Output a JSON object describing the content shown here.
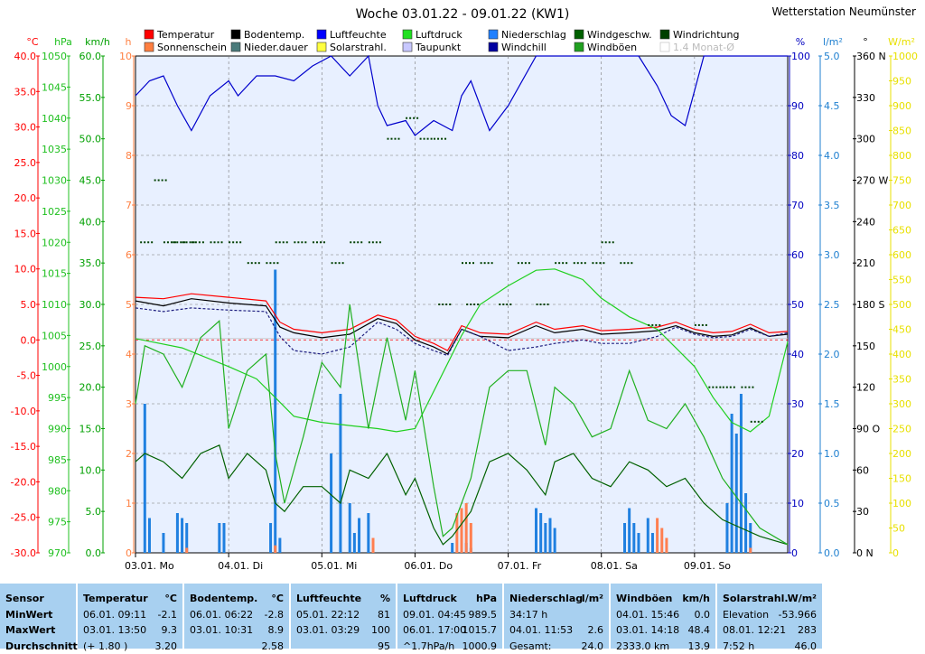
{
  "title": "Woche 03.01.22 - 09.01.22 (KW1)",
  "station": "Wetterstation Neumünster",
  "legend": [
    {
      "label": "Temperatur",
      "color": "#ff0000"
    },
    {
      "label": "Sonnenschein",
      "color": "#ff7f40"
    },
    {
      "label": "Bodentemp.",
      "color": "#000000"
    },
    {
      "label": "Nieder.dauer",
      "color": "#4a7a7a"
    },
    {
      "label": "Luftfeuchte",
      "color": "#0000ff"
    },
    {
      "label": "Solarstrahl.",
      "color": "#ffff40"
    },
    {
      "label": "Luftdruck",
      "color": "#20e020"
    },
    {
      "label": "Taupunkt",
      "color": "#c8c8ff"
    },
    {
      "label": "Niederschlag",
      "color": "#2080ff"
    },
    {
      "label": "Windchill",
      "color": "#0000a0"
    },
    {
      "label": "Windgeschw.",
      "color": "#006000"
    },
    {
      "label": "Windböen",
      "color": "#20a020"
    },
    {
      "label": "Windrichtung",
      "color": "#004000"
    },
    {
      "label": "1.4 Monat-Ø",
      "color": "#ffffff"
    }
  ],
  "axes": {
    "temp": {
      "unit": "°C",
      "min": -30,
      "max": 40,
      "step": 5,
      "color": "#ff0000"
    },
    "pressure": {
      "unit": "hPa",
      "min": 970,
      "max": 1050,
      "step": 5,
      "color": "#20c020"
    },
    "wind": {
      "unit": "km/h",
      "min": 0,
      "max": 60,
      "step": 5,
      "color": "#00a000"
    },
    "hours": {
      "unit": "h",
      "min": 0,
      "max": 10,
      "step": 1,
      "color": "#ff7f40"
    },
    "humidity": {
      "unit": "%",
      "min": 0,
      "max": 100,
      "step": 10,
      "color": "#0000c0"
    },
    "rain": {
      "unit": "l/m²",
      "min": 0,
      "max": 5,
      "step": 0.5,
      "color": "#2080d0"
    },
    "direction": {
      "unit": "°",
      "min": 0,
      "max": 360,
      "step": 30,
      "color": "#000000",
      "compass": {
        "0": "N",
        "90": "O",
        "180": "S",
        "270": "W",
        "360": "N"
      }
    },
    "solar": {
      "unit": "W/m²",
      "min": 0,
      "max": 1000,
      "step": 50,
      "color": "#e8e000"
    }
  },
  "x_labels": [
    "03.01. Mo",
    "04.01. Di",
    "05.01. Mi",
    "06.01. Do",
    "07.01. Fr",
    "08.01. Sa",
    "09.01. So"
  ],
  "chart_data": {
    "type": "line",
    "title": "Woche 03.01.22 - 09.01.22 (KW1)",
    "x_range_days": [
      0,
      7
    ],
    "series": [
      {
        "name": "Temperatur",
        "axis": "temp",
        "color": "#ff0000",
        "x": [
          0,
          0.3,
          0.6,
          1.0,
          1.4,
          1.55,
          1.7,
          2.0,
          2.3,
          2.6,
          2.8,
          3.0,
          3.2,
          3.35,
          3.5,
          3.7,
          4.0,
          4.3,
          4.5,
          4.8,
          5.0,
          5.3,
          5.6,
          5.8,
          6.0,
          6.2,
          6.4,
          6.6,
          6.8,
          7.0
        ],
        "values": [
          6.0,
          5.8,
          6.5,
          6.0,
          5.5,
          2.5,
          1.5,
          1.0,
          1.5,
          3.5,
          2.8,
          0.5,
          -0.5,
          -1.5,
          2.0,
          1.0,
          0.8,
          2.5,
          1.5,
          2.0,
          1.3,
          1.5,
          1.8,
          2.5,
          1.5,
          1.0,
          1.2,
          2.2,
          1.0,
          1.2
        ]
      },
      {
        "name": "Bodentemp.",
        "axis": "temp",
        "color": "#000000",
        "x": [
          0,
          0.3,
          0.6,
          1.0,
          1.4,
          1.55,
          1.7,
          2.0,
          2.3,
          2.6,
          2.8,
          3.0,
          3.2,
          3.35,
          3.5,
          3.7,
          4.0,
          4.3,
          4.5,
          4.8,
          5.0,
          5.3,
          5.6,
          5.8,
          6.0,
          6.2,
          6.4,
          6.6,
          6.8,
          7.0
        ],
        "values": [
          5.5,
          4.8,
          5.8,
          5.2,
          4.8,
          1.8,
          1.0,
          0.3,
          0.8,
          3.0,
          2.3,
          0.0,
          -1.0,
          -2.0,
          1.5,
          0.5,
          0.3,
          2.0,
          1.0,
          1.5,
          0.8,
          1.0,
          1.3,
          2.0,
          1.0,
          0.5,
          0.7,
          1.7,
          0.5,
          0.8
        ]
      },
      {
        "name": "Taupunkt",
        "axis": "temp",
        "color": "#202080",
        "dash": "3,2",
        "x": [
          0,
          0.3,
          0.6,
          1.0,
          1.4,
          1.55,
          1.7,
          2.0,
          2.3,
          2.6,
          2.8,
          3.0,
          3.2,
          3.35,
          3.5,
          3.7,
          4.0,
          4.3,
          4.5,
          4.8,
          5.0,
          5.3,
          5.6,
          5.8,
          6.0,
          6.2,
          6.4,
          6.6,
          6.8,
          7.0
        ],
        "values": [
          4.5,
          4.0,
          4.5,
          4.2,
          4.0,
          0.5,
          -1.5,
          -2.0,
          -1.0,
          2.5,
          1.5,
          -0.5,
          -1.5,
          -2.2,
          1.5,
          0.5,
          -1.5,
          -1.0,
          -0.5,
          0.0,
          -0.5,
          -0.5,
          0.5,
          1.8,
          0.8,
          0.3,
          0.5,
          1.5,
          0.5,
          1.0
        ]
      },
      {
        "name": "Luftfeuchte",
        "axis": "humidity",
        "color": "#0000cc",
        "x": [
          0,
          0.15,
          0.3,
          0.45,
          0.6,
          0.8,
          1.0,
          1.1,
          1.3,
          1.5,
          1.7,
          1.9,
          2.1,
          2.3,
          2.5,
          2.6,
          2.7,
          2.9,
          3.0,
          3.2,
          3.4,
          3.5,
          3.6,
          3.8,
          4.0,
          4.3,
          4.6,
          5.0,
          5.4,
          5.6,
          5.75,
          5.9,
          6.1,
          6.3,
          6.6,
          7.0
        ],
        "values": [
          92,
          95,
          96,
          90,
          85,
          92,
          95,
          92,
          96,
          96,
          95,
          98,
          100,
          96,
          100,
          90,
          86,
          87,
          84,
          87,
          85,
          92,
          95,
          85,
          90,
          100,
          100,
          100,
          100,
          94,
          88,
          86,
          100,
          100,
          100,
          100
        ]
      },
      {
        "name": "Luftdruck",
        "axis": "pressure",
        "color": "#20d020",
        "x": [
          0,
          0.5,
          1.0,
          1.3,
          1.5,
          1.7,
          2.0,
          2.3,
          2.6,
          2.8,
          3.0,
          3.2,
          3.5,
          3.7,
          4.0,
          4.3,
          4.5,
          4.8,
          5.0,
          5.3,
          5.6,
          5.8,
          6.0,
          6.2,
          6.4,
          6.6,
          6.8,
          7.0
        ],
        "values": [
          1004.5,
          1003,
          1000,
          998,
          995,
          992,
          991,
          990.5,
          990,
          989.5,
          990,
          996,
          1005,
          1010,
          1013,
          1015.5,
          1015.7,
          1014,
          1011,
          1008,
          1006,
          1003,
          1000,
          995,
          991,
          989.5,
          992,
          1004
        ]
      },
      {
        "name": "Windgeschw.",
        "axis": "wind",
        "color": "#006000",
        "x": [
          0,
          0.1,
          0.3,
          0.5,
          0.7,
          0.9,
          1.0,
          1.2,
          1.4,
          1.5,
          1.6,
          1.8,
          2.0,
          2.2,
          2.3,
          2.5,
          2.7,
          2.9,
          3.0,
          3.2,
          3.3,
          3.4,
          3.6,
          3.8,
          4.0,
          4.2,
          4.4,
          4.5,
          4.7,
          4.9,
          5.1,
          5.3,
          5.5,
          5.7,
          5.9,
          6.1,
          6.3,
          6.5,
          6.7,
          7.0
        ],
        "values": [
          11,
          12,
          11,
          9,
          12,
          13,
          9,
          12,
          10,
          6,
          5,
          8,
          8,
          6,
          10,
          9,
          12,
          7,
          9,
          3,
          1,
          2,
          5,
          11,
          12,
          10,
          7,
          11,
          12,
          9,
          8,
          11,
          10,
          8,
          9,
          6,
          4,
          3,
          2,
          1
        ]
      },
      {
        "name": "Windböen",
        "axis": "wind",
        "color": "#20b020",
        "x": [
          0,
          0.1,
          0.3,
          0.5,
          0.7,
          0.9,
          1.0,
          1.2,
          1.4,
          1.5,
          1.6,
          1.8,
          2.0,
          2.2,
          2.3,
          2.5,
          2.7,
          2.9,
          3.0,
          3.2,
          3.3,
          3.4,
          3.6,
          3.8,
          4.0,
          4.2,
          4.4,
          4.5,
          4.7,
          4.9,
          5.1,
          5.3,
          5.5,
          5.7,
          5.9,
          6.1,
          6.3,
          6.5,
          6.7,
          7.0
        ],
        "values": [
          18,
          25,
          24,
          20,
          26,
          28,
          15,
          22,
          24,
          12,
          6,
          14,
          23,
          20,
          30,
          15,
          26,
          16,
          22,
          8,
          2,
          3,
          9,
          20,
          22,
          22,
          13,
          20,
          18,
          14,
          15,
          22,
          16,
          15,
          18,
          14,
          9,
          6,
          3,
          1
        ]
      }
    ],
    "bars": [
      {
        "name": "Niederschlag",
        "axis": "rain",
        "color": "#2080e0",
        "x": [
          0.1,
          0.15,
          0.3,
          0.45,
          0.5,
          0.55,
          0.9,
          0.95,
          1.45,
          1.5,
          1.55,
          2.1,
          2.2,
          2.3,
          2.35,
          2.4,
          2.5,
          3.4,
          3.5,
          3.55,
          3.6,
          4.3,
          4.35,
          4.4,
          4.45,
          4.5,
          5.25,
          5.3,
          5.35,
          5.4,
          5.5,
          5.55,
          6.35,
          6.4,
          6.45,
          6.5,
          6.55,
          6.6
        ],
        "values": [
          1.5,
          0.35,
          0.2,
          0.4,
          0.35,
          0.3,
          0.3,
          0.3,
          0.3,
          2.85,
          0.15,
          1.0,
          1.6,
          0.5,
          0.2,
          0.35,
          0.4,
          0.1,
          0.3,
          0.1,
          0.05,
          0.45,
          0.4,
          0.3,
          0.35,
          0.25,
          0.3,
          0.45,
          0.3,
          0.2,
          0.35,
          0.2,
          0.5,
          1.4,
          1.2,
          1.6,
          0.6,
          0.3
        ]
      },
      {
        "name": "Sonnenschein",
        "axis": "hours",
        "color": "#ff7f50",
        "x": [
          0.55,
          1.5,
          2.55,
          3.45,
          3.5,
          3.55,
          3.6,
          5.6,
          5.65,
          5.7,
          6.6
        ],
        "values": [
          0.1,
          0.15,
          0.3,
          0.8,
          0.9,
          1.0,
          0.6,
          0.7,
          0.5,
          0.3,
          0.1
        ]
      }
    ],
    "direction_points": {
      "axis": "direction",
      "color": "#004000",
      "x": [
        0.05,
        0.2,
        0.3,
        0.4,
        0.5,
        0.6,
        0.8,
        1.0,
        1.2,
        1.4,
        1.5,
        1.7,
        1.9,
        2.1,
        2.3,
        2.5,
        2.7,
        2.9,
        3.05,
        3.2,
        3.25,
        3.5,
        3.55,
        3.7,
        3.9,
        4.1,
        4.3,
        4.5,
        4.7,
        4.9,
        5.0,
        5.2,
        5.5,
        6.0,
        6.15,
        6.3,
        6.5,
        6.6
      ],
      "values": [
        225,
        270,
        225,
        225,
        225,
        225,
        225,
        225,
        210,
        210,
        225,
        225,
        225,
        210,
        225,
        225,
        300,
        315,
        300,
        300,
        180,
        210,
        180,
        210,
        180,
        210,
        180,
        210,
        210,
        210,
        225,
        210,
        165,
        165,
        120,
        120,
        120,
        95
      ]
    },
    "stats": {
      "Temperatur": {
        "unit": "°C",
        "min_time": "06.01.  09:11",
        "min": -2.1,
        "max_time": "03.01.  13:50",
        "max": 9.3,
        "avg_note": "(+ 1.80 )",
        "avg": 3.2
      },
      "Bodentemp.": {
        "unit": "°C",
        "min": -2.8,
        "max": 8.9,
        "avg": 2.58
      },
      "Luftfeuchte": {
        "unit": "%",
        "min": 81,
        "max": 100,
        "avg": 95
      },
      "Luftdruck": {
        "unit": "hPa",
        "min": 989.5,
        "max": 1015.7,
        "avg": 1000.9
      },
      "Niederschlag": {
        "unit": "l/m²",
        "max": 2.6,
        "total": 24.0
      },
      "Windböen": {
        "unit": "km/h",
        "min": 0.0,
        "max": 48.4,
        "avg": 13.9
      },
      "Solarstrahl.": {
        "unit": "W/m²",
        "max": 283,
        "avg": 46.0
      }
    }
  },
  "stats_table": {
    "sensor": {
      "title": "Sensor",
      "rows": [
        "MinWert",
        "MaxWert",
        "Durchschnitt"
      ]
    },
    "boxes": [
      {
        "title": "Temperatur",
        "unit": "°C",
        "rows": [
          [
            "06.01.  09:11",
            "-2.1"
          ],
          [
            "03.01.  13:50",
            "9.3"
          ],
          [
            "(+ 1.80 )",
            "3.20"
          ]
        ]
      },
      {
        "title": "Bodentemp.",
        "unit": "°C",
        "rows": [
          [
            "06.01.  06:22",
            "-2.8"
          ],
          [
            "03.01.  10:31",
            "8.9"
          ],
          [
            "",
            "2.58"
          ]
        ]
      },
      {
        "title": "Luftfeuchte",
        "unit": "%",
        "rows": [
          [
            "05.01.  22:12",
            "81"
          ],
          [
            "03.01.  03:29",
            "100"
          ],
          [
            "",
            "95"
          ]
        ]
      },
      {
        "title": "Luftdruck",
        "unit": "hPa",
        "rows": [
          [
            "09.01.  04:45",
            "989.5"
          ],
          [
            "06.01.  17:00",
            "1015.7"
          ],
          [
            "^1.7hPa/h",
            "1000.9"
          ]
        ]
      },
      {
        "title": "Niederschlag",
        "unit": "l/m²",
        "rows": [
          [
            "34:17 h",
            ""
          ],
          [
            "04.01.  11:53",
            "2.6"
          ],
          [
            "Gesamt:",
            "24.0"
          ]
        ]
      },
      {
        "title": "Windböen",
        "unit": "km/h",
        "rows": [
          [
            "04.01.  15:46",
            "0.0"
          ],
          [
            "03.01.  14:18",
            "48.4"
          ],
          [
            "2333.0 km",
            "13.9"
          ]
        ]
      },
      {
        "title": "Solarstrahl.",
        "unit": "W/m²",
        "rows": [
          [
            "Elevation",
            "-53.966"
          ],
          [
            "08.01.  12:21",
            "283"
          ],
          [
            "7:52 h",
            "46.0"
          ]
        ]
      }
    ]
  }
}
